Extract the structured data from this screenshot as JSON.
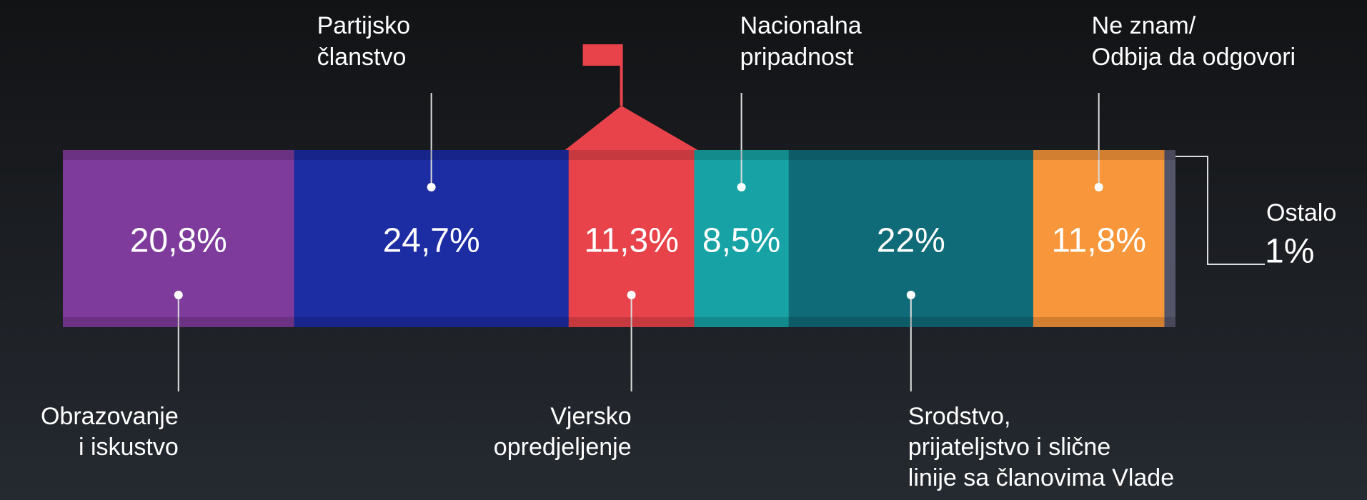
{
  "chart_data": {
    "type": "stacked-bar",
    "series": [
      {
        "name": [
          "Obrazovanje",
          "i iskustvo"
        ],
        "color": "#7e3b9c",
        "values": [
          20.8
        ],
        "value_labels": [
          "20,8%"
        ]
      },
      {
        "name": [
          "Partijsko",
          "članstvo"
        ],
        "color": "#1c2ca3",
        "values": [
          24.7
        ],
        "value_labels": [
          "24,7%"
        ]
      },
      {
        "name": [
          "Vjersko",
          "opredjeljenje"
        ],
        "color": "#e8434a",
        "values": [
          11.3
        ],
        "value_labels": [
          "11,3%"
        ]
      },
      {
        "name": [
          "Nacionalna",
          "pripadnost"
        ],
        "color": "#17a3a5",
        "values": [
          8.5
        ],
        "value_labels": [
          "8,5%"
        ]
      },
      {
        "name": [
          "Srodstvo,",
          "prijateljstvo i slične",
          "linije sa članovima Vlade"
        ],
        "color": "#0f6b78",
        "values": [
          22
        ],
        "value_labels": [
          "22%"
        ]
      },
      {
        "name": [
          "Ne znam/",
          "Odbija da odgovori"
        ],
        "color": "#f7963a",
        "values": [
          11.8
        ],
        "value_labels": [
          "11,8%"
        ]
      },
      {
        "name": [
          "Ostalo"
        ],
        "color": "#55556a",
        "values": [
          1
        ],
        "value_labels": [
          "1%"
        ]
      }
    ]
  }
}
